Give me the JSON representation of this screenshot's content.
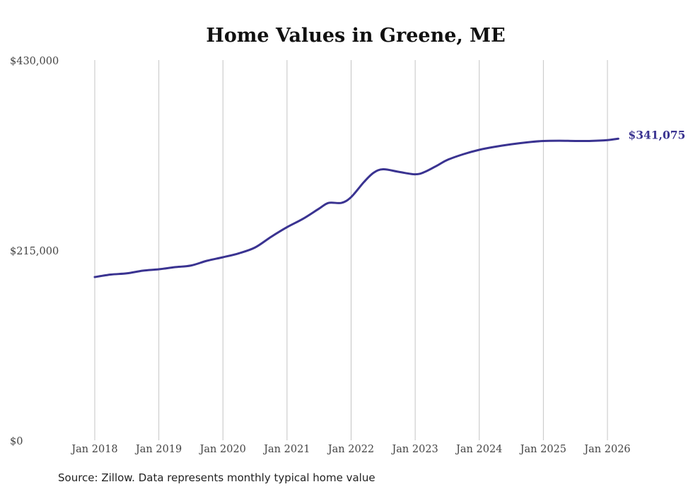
{
  "chart_data": {
    "type": "line",
    "title": "Home Values in Greene, ME",
    "xlabel": "",
    "ylabel": "",
    "ylim": [
      0,
      430000
    ],
    "xlim": [
      2018,
      2026.25
    ],
    "y_ticks": [
      0,
      215000,
      430000
    ],
    "y_tick_labels": [
      "$0",
      "$215,000",
      "$430,000"
    ],
    "x_ticks": [
      2018,
      2019,
      2020,
      2021,
      2022,
      2023,
      2024,
      2025,
      2026
    ],
    "x_tick_labels": [
      "Jan 2018",
      "Jan 2019",
      "Jan 2020",
      "Jan 2021",
      "Jan 2022",
      "Jan 2023",
      "Jan 2024",
      "Jan 2025",
      "Jan 2026"
    ],
    "grid": "vertical",
    "color": "#3a3391",
    "series": [
      {
        "name": "Typical home value",
        "x": [
          2018.0,
          2018.25,
          2018.5,
          2018.75,
          2019.0,
          2019.25,
          2019.5,
          2019.75,
          2020.0,
          2020.25,
          2020.5,
          2020.75,
          2021.0,
          2021.25,
          2021.5,
          2021.65,
          2021.85,
          2022.0,
          2022.2,
          2022.35,
          2022.5,
          2022.75,
          2023.0,
          2023.15,
          2023.35,
          2023.5,
          2023.75,
          2024.0,
          2024.25,
          2024.5,
          2024.75,
          2025.0,
          2025.25,
          2025.5,
          2025.75,
          2026.0,
          2026.17
        ],
        "values": [
          184600,
          187400,
          188800,
          191800,
          193400,
          195800,
          197600,
          203000,
          207000,
          211500,
          218000,
          230000,
          241000,
          250500,
          262000,
          268500,
          268500,
          275000,
          292000,
          302500,
          306500,
          303500,
          300800,
          303500,
          311000,
          317000,
          323500,
          328500,
          332000,
          334800,
          337000,
          338500,
          338800,
          338500,
          338600,
          339500,
          341075
        ]
      }
    ],
    "end_label": "$341,075"
  },
  "source": "Source: Zillow. Data represents monthly typical home value"
}
